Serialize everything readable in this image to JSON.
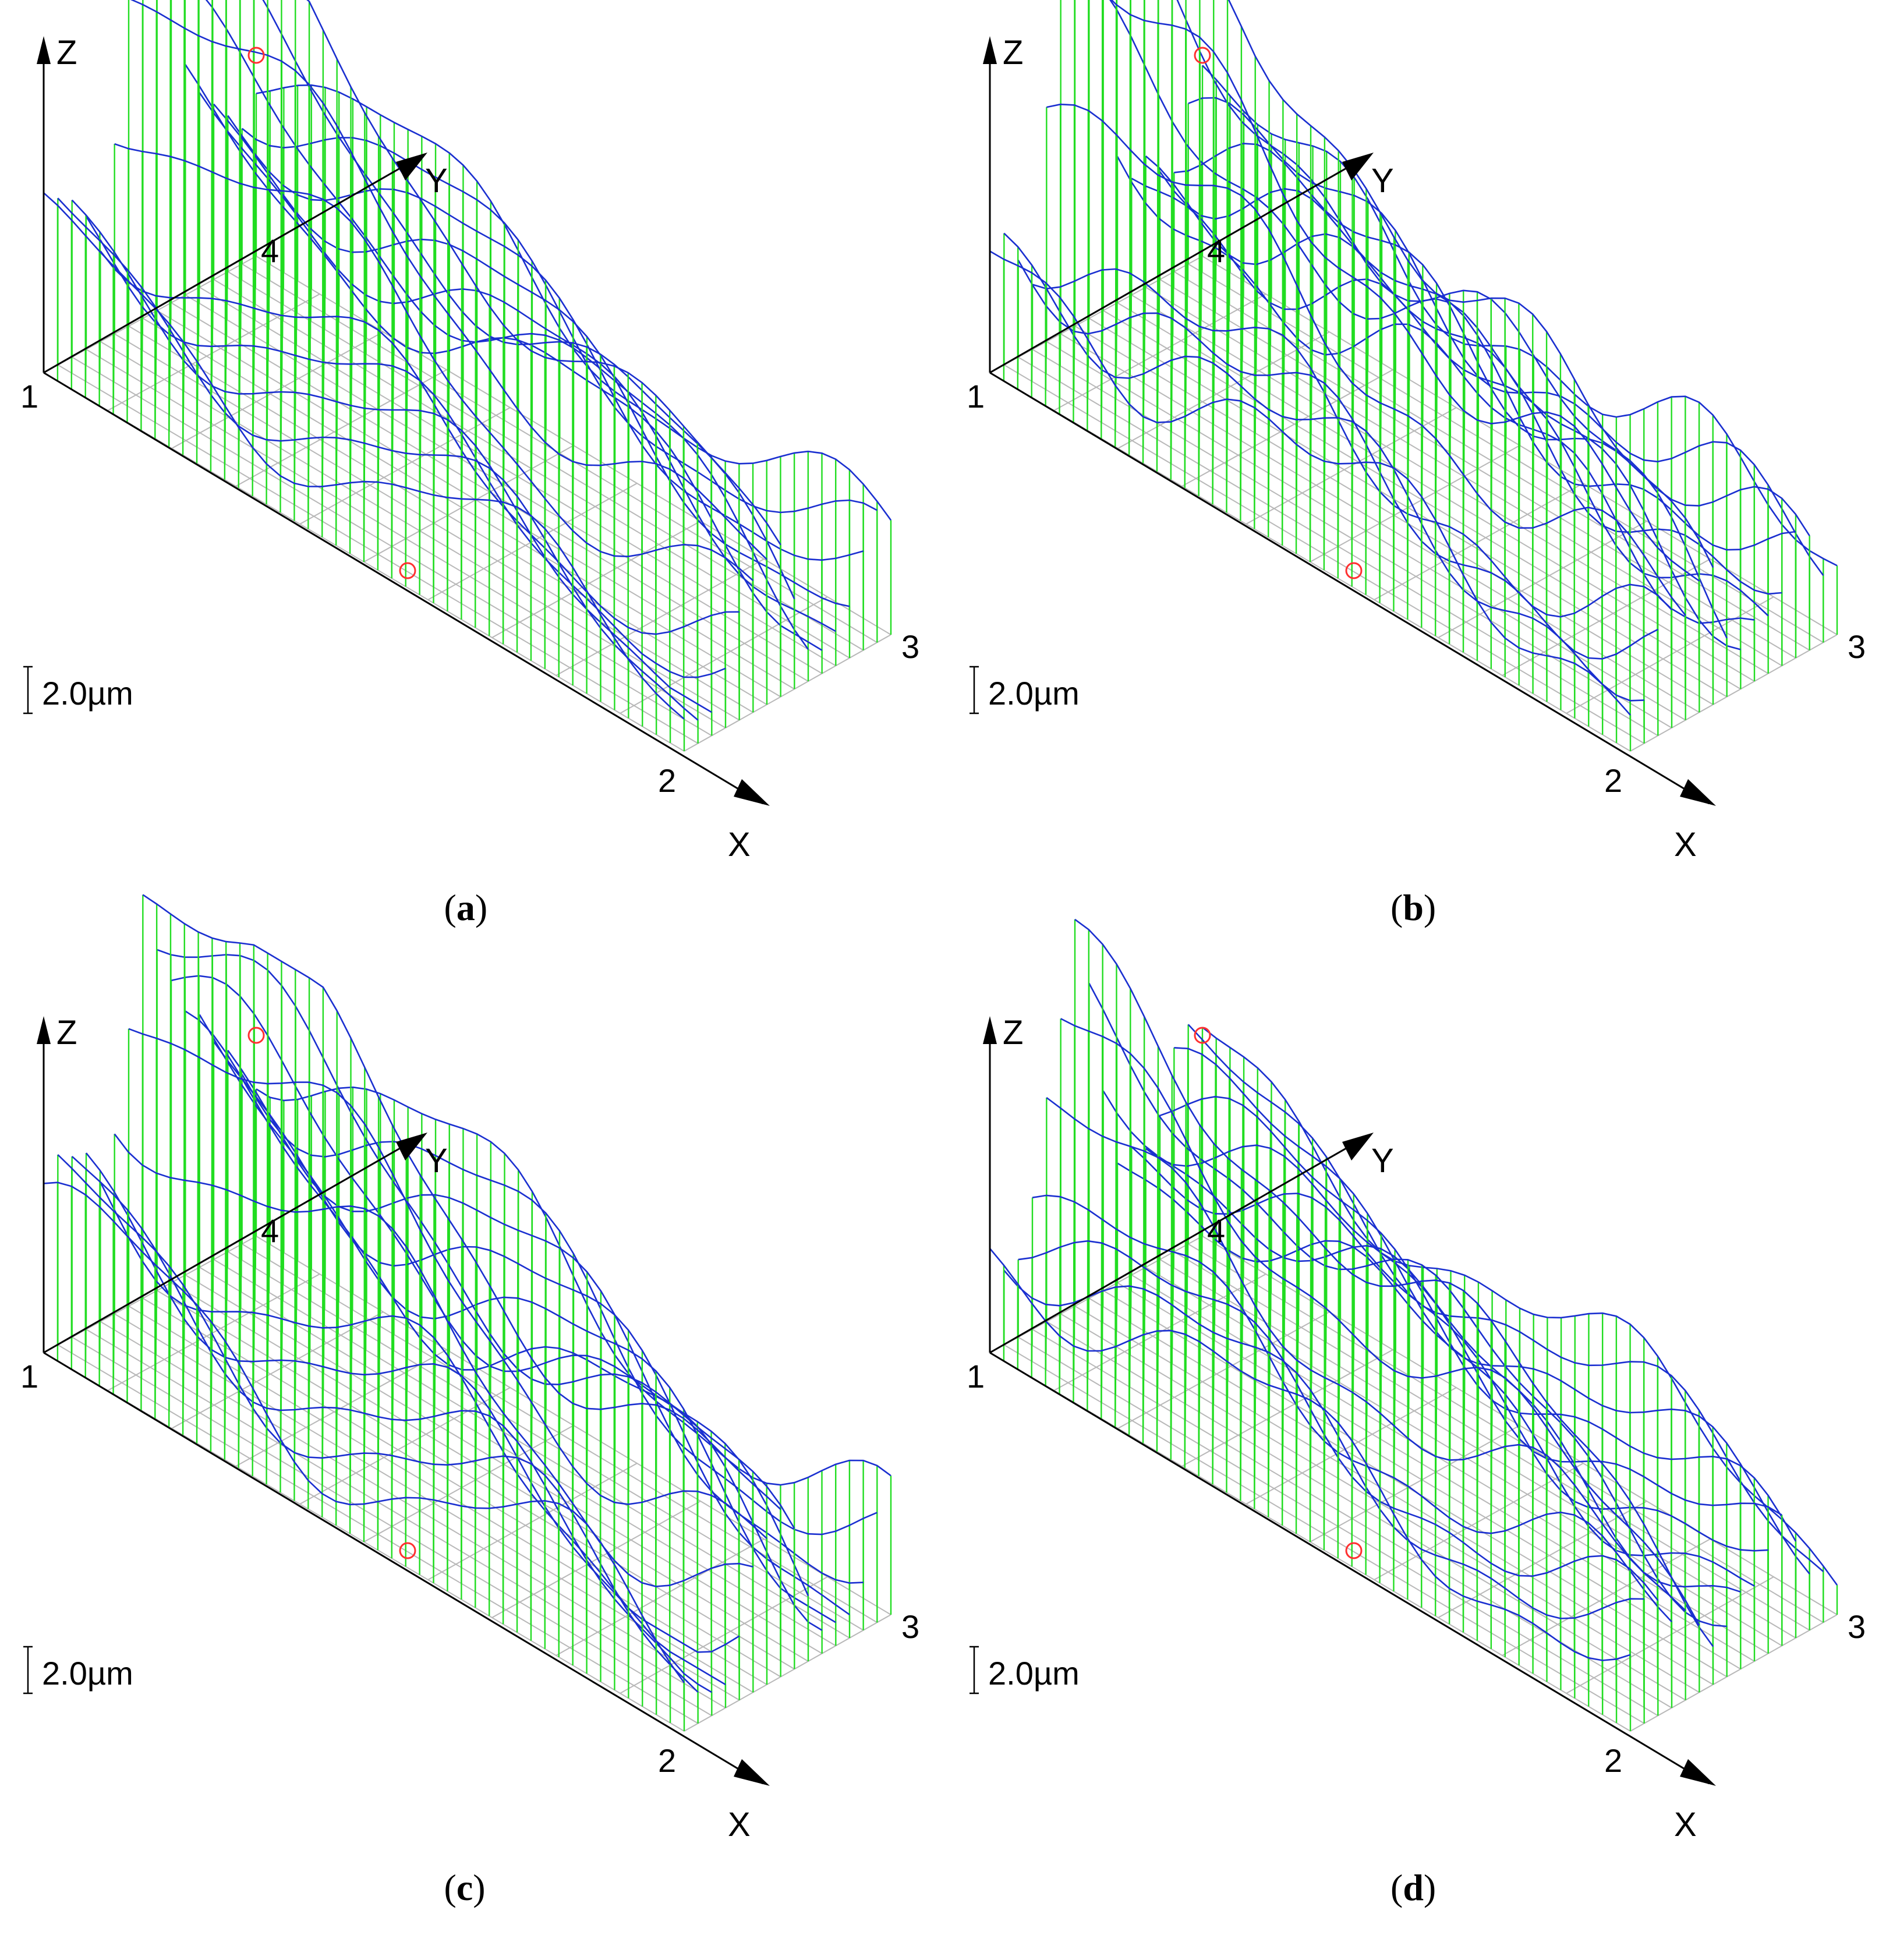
{
  "panels": [
    {
      "id": "a",
      "caption": "a",
      "axis_x": "X",
      "axis_y": "Y",
      "axis_z": "Z",
      "corner_labels": [
        "1",
        "2",
        "3",
        "4"
      ],
      "scale_label": "2.0µm"
    },
    {
      "id": "b",
      "caption": "b",
      "axis_x": "X",
      "axis_y": "Y",
      "axis_z": "Z",
      "corner_labels": [
        "1",
        "2",
        "3",
        "4"
      ],
      "scale_label": "2.0µm"
    },
    {
      "id": "c",
      "caption": "c",
      "axis_x": "X",
      "axis_y": "Y",
      "axis_z": "Z",
      "corner_labels": [
        "1",
        "2",
        "3",
        "4"
      ],
      "scale_label": "2.0µm"
    },
    {
      "id": "d",
      "caption": "d",
      "axis_x": "X",
      "axis_y": "Y",
      "axis_z": "Z",
      "corner_labels": [
        "1",
        "2",
        "3",
        "4"
      ],
      "scale_label": "2.0µm"
    }
  ],
  "colors": {
    "stem": "#22dd22",
    "profile": "#1a2fd0",
    "grid": "#b8b8b8",
    "axis": "#000000",
    "marker": "#ff3030"
  }
}
